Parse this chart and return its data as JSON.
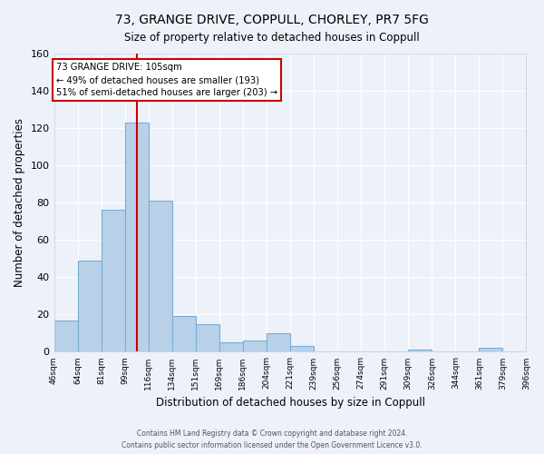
{
  "title": "73, GRANGE DRIVE, COPPULL, CHORLEY, PR7 5FG",
  "subtitle": "Size of property relative to detached houses in Coppull",
  "xlabel": "Distribution of detached houses by size in Coppull",
  "ylabel": "Number of detached properties",
  "bar_color": "#b8d0e8",
  "bar_edge_color": "#7aafd4",
  "background_color": "#edf2fa",
  "grid_color": "#ffffff",
  "bin_labels": [
    "46sqm",
    "64sqm",
    "81sqm",
    "99sqm",
    "116sqm",
    "134sqm",
    "151sqm",
    "169sqm",
    "186sqm",
    "204sqm",
    "221sqm",
    "239sqm",
    "256sqm",
    "274sqm",
    "291sqm",
    "309sqm",
    "326sqm",
    "344sqm",
    "361sqm",
    "379sqm",
    "396sqm"
  ],
  "counts": [
    17,
    49,
    76,
    123,
    81,
    19,
    15,
    5,
    6,
    10,
    3,
    0,
    0,
    0,
    0,
    1,
    0,
    0,
    2,
    0
  ],
  "n_bins": 20,
  "vline_bin": 3.5,
  "vline_color": "#cc0000",
  "annotation_title": "73 GRANGE DRIVE: 105sqm",
  "annotation_line1": "← 49% of detached houses are smaller (193)",
  "annotation_line2": "51% of semi-detached houses are larger (203) →",
  "annotation_box_color": "#ffffff",
  "annotation_box_edge": "#cc0000",
  "ylim": [
    0,
    160
  ],
  "yticks": [
    0,
    20,
    40,
    60,
    80,
    100,
    120,
    140,
    160
  ],
  "footer1": "Contains HM Land Registry data © Crown copyright and database right 2024.",
  "footer2": "Contains public sector information licensed under the Open Government Licence v3.0."
}
